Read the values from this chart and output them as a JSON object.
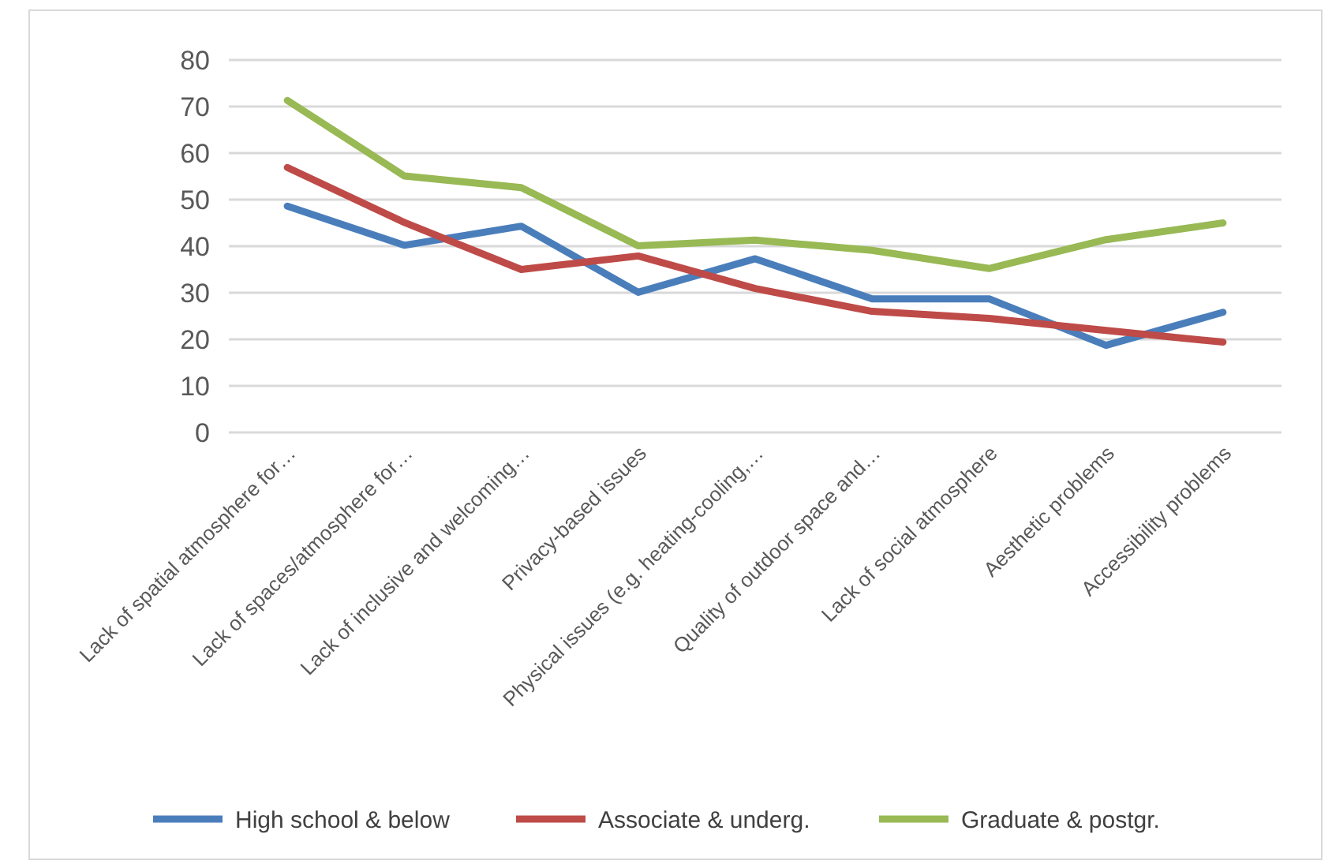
{
  "chart_data": {
    "type": "line",
    "categories": [
      "Lack of spatial atmosphere for…",
      "Lack of spaces/atmosphere for…",
      "Lack of inclusive and welcoming…",
      "Privacy-based issues",
      "Physical issues (e.g. heating-cooling,…",
      "Quality of outdoor space and…",
      "Lack of social atmosphere",
      "Aesthetic problems",
      "Accessibility problems"
    ],
    "series": [
      {
        "name": "High school & below",
        "color": "#4a7ebb",
        "values": [
          48.6,
          40.2,
          44.3,
          30.1,
          37.3,
          28.7,
          28.7,
          18.7,
          25.8
        ]
      },
      {
        "name": "Associate & underg.",
        "color": "#be4b48",
        "values": [
          56.9,
          45.1,
          35.0,
          37.9,
          30.9,
          26.0,
          24.5,
          21.9,
          19.4
        ]
      },
      {
        "name": "Graduate & postgr.",
        "color": "#98b954",
        "values": [
          71.3,
          55.1,
          52.6,
          40.1,
          41.3,
          39.1,
          35.2,
          41.4,
          45.0
        ]
      }
    ],
    "ylim": [
      0,
      80
    ],
    "yticks": [
      0,
      10,
      20,
      30,
      40,
      50,
      60,
      70,
      80
    ],
    "grid": "y",
    "legend": "bottom",
    "marker": "none",
    "line_style": "solid"
  }
}
